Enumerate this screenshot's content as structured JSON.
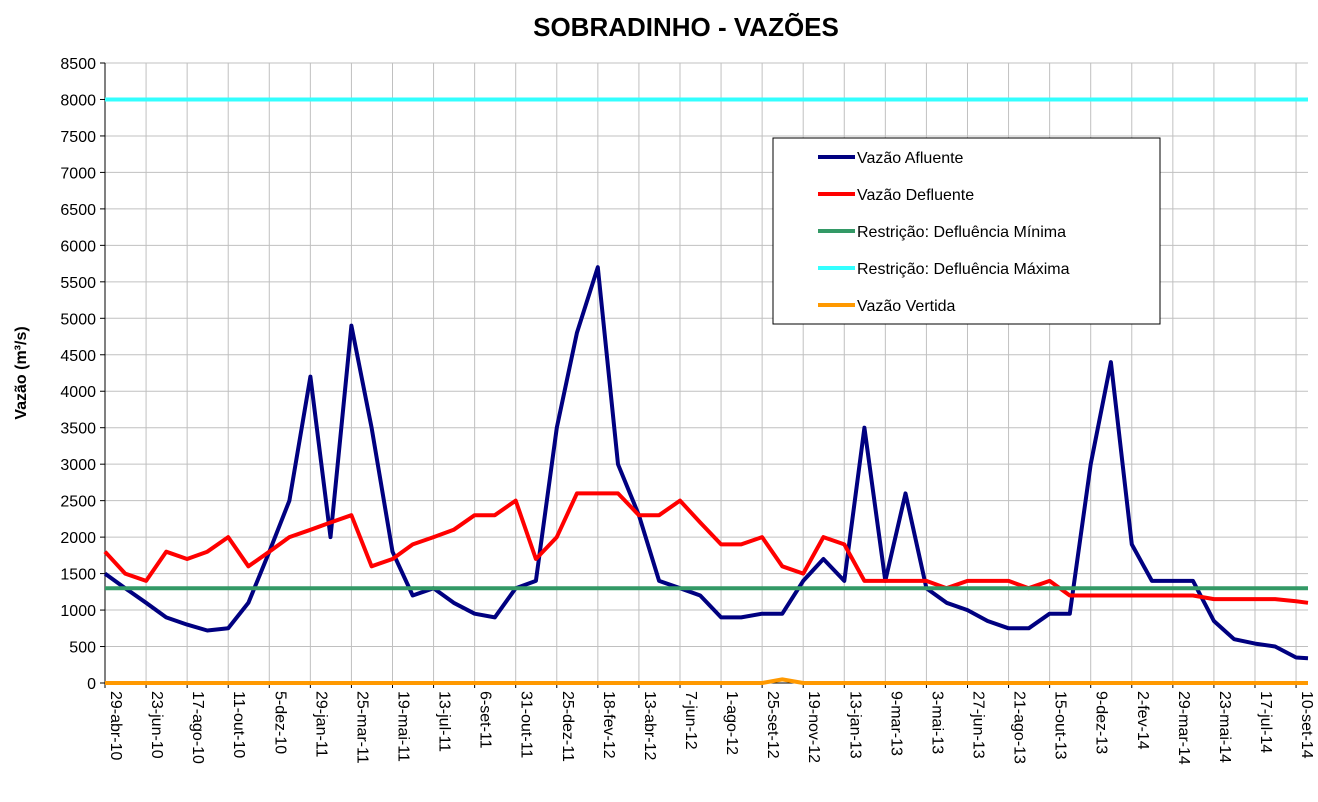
{
  "chart_data": {
    "type": "line",
    "title": "SOBRADINHO - VAZÕES",
    "y_label": "Vazão (m³/s)",
    "x": [
      "2010-04-29",
      "2010-05-26",
      "2010-06-23",
      "2010-07-20",
      "2010-08-17",
      "2010-09-13",
      "2010-10-11",
      "2010-11-07",
      "2010-12-05",
      "2011-01-01",
      "2011-01-29",
      "2011-02-25",
      "2011-03-25",
      "2011-04-21",
      "2011-05-19",
      "2011-06-15",
      "2011-07-13",
      "2011-08-09",
      "2011-09-06",
      "2011-10-03",
      "2011-10-31",
      "2011-11-27",
      "2011-12-25",
      "2012-01-21",
      "2012-02-18",
      "2012-03-16",
      "2012-04-13",
      "2012-05-10",
      "2012-06-07",
      "2012-07-04",
      "2012-08-01",
      "2012-08-28",
      "2012-09-25",
      "2012-10-22",
      "2012-11-19",
      "2012-12-16",
      "2013-01-13",
      "2013-02-09",
      "2013-03-09",
      "2013-04-05",
      "2013-05-03",
      "2013-05-30",
      "2013-06-27",
      "2013-07-24",
      "2013-08-21",
      "2013-09-17",
      "2013-10-15",
      "2013-11-11",
      "2013-12-09",
      "2014-01-05",
      "2014-02-02",
      "2014-03-01",
      "2014-03-29",
      "2014-04-25",
      "2014-05-23",
      "2014-06-19",
      "2014-07-17",
      "2014-08-13",
      "2014-09-10",
      "2014-09-26"
    ],
    "series": [
      {
        "name": "Vazão Afluente",
        "color": "#000080",
        "values": [
          1500,
          1300,
          1100,
          900,
          800,
          720,
          750,
          1100,
          1800,
          2500,
          4200,
          2000,
          4900,
          3500,
          1800,
          1200,
          1300,
          1100,
          950,
          900,
          1300,
          1400,
          3500,
          4800,
          5700,
          3000,
          2300,
          1400,
          1300,
          1200,
          900,
          900,
          950,
          950,
          1400,
          1700,
          1400,
          3500,
          1400,
          2600,
          1300,
          1100,
          1000,
          850,
          750,
          750,
          950,
          950,
          3000,
          4400,
          1900,
          1400,
          1400,
          1400,
          850,
          600,
          540,
          500,
          350,
          340
        ]
      },
      {
        "name": "Vazão Defluente",
        "color": "#ff0000",
        "values": [
          1800,
          1500,
          1400,
          1800,
          1700,
          1800,
          2000,
          1600,
          1800,
          2000,
          2100,
          2200,
          2300,
          1600,
          1700,
          1900,
          2000,
          2100,
          2300,
          2300,
          2500,
          1700,
          2000,
          2600,
          2600,
          2600,
          2300,
          2300,
          2500,
          2200,
          1900,
          1900,
          2000,
          1600,
          1500,
          2000,
          1900,
          1400,
          1400,
          1400,
          1400,
          1300,
          1400,
          1400,
          1400,
          1300,
          1400,
          1200,
          1200,
          1200,
          1200,
          1200,
          1200,
          1200,
          1150,
          1150,
          1150,
          1150,
          1120,
          1100
        ]
      },
      {
        "name": "Restrição: Defluência Mínima",
        "color": "#339966",
        "values": [
          1300,
          1300,
          1300,
          1300,
          1300,
          1300,
          1300,
          1300,
          1300,
          1300,
          1300,
          1300,
          1300,
          1300,
          1300,
          1300,
          1300,
          1300,
          1300,
          1300,
          1300,
          1300,
          1300,
          1300,
          1300,
          1300,
          1300,
          1300,
          1300,
          1300,
          1300,
          1300,
          1300,
          1300,
          1300,
          1300,
          1300,
          1300,
          1300,
          1300,
          1300,
          1300,
          1300,
          1300,
          1300,
          1300,
          1300,
          1300,
          1300,
          1300,
          1300,
          1300,
          1300,
          1300,
          1300,
          1300,
          1300,
          1300,
          1300,
          1300
        ]
      },
      {
        "name": "Restrição: Defluência Máxima",
        "color": "#33ffff",
        "values": [
          8000,
          8000,
          8000,
          8000,
          8000,
          8000,
          8000,
          8000,
          8000,
          8000,
          8000,
          8000,
          8000,
          8000,
          8000,
          8000,
          8000,
          8000,
          8000,
          8000,
          8000,
          8000,
          8000,
          8000,
          8000,
          8000,
          8000,
          8000,
          8000,
          8000,
          8000,
          8000,
          8000,
          8000,
          8000,
          8000,
          8000,
          8000,
          8000,
          8000,
          8000,
          8000,
          8000,
          8000,
          8000,
          8000,
          8000,
          8000,
          8000,
          8000,
          8000,
          8000,
          8000,
          8000,
          8000,
          8000,
          8000,
          8000,
          8000,
          8000
        ]
      },
      {
        "name": "Vazão Vertida",
        "color": "#ff9900",
        "values": [
          0,
          0,
          0,
          0,
          0,
          0,
          0,
          0,
          0,
          0,
          0,
          0,
          0,
          0,
          0,
          0,
          0,
          0,
          0,
          0,
          0,
          0,
          0,
          0,
          0,
          0,
          0,
          0,
          0,
          0,
          0,
          0,
          0,
          50,
          0,
          0,
          0,
          0,
          0,
          0,
          0,
          0,
          0,
          0,
          0,
          0,
          0,
          0,
          0,
          0,
          0,
          0,
          0,
          0,
          0,
          0,
          0,
          0,
          0,
          0
        ]
      }
    ],
    "xlim": [
      "2010-04-29",
      "2014-09-26"
    ],
    "xticks": [
      {
        "value": "2010-04-29",
        "label": "29-abr-10"
      },
      {
        "value": "2010-06-23",
        "label": "23-jun-10"
      },
      {
        "value": "2010-08-17",
        "label": "17-ago-10"
      },
      {
        "value": "2010-10-11",
        "label": "11-out-10"
      },
      {
        "value": "2010-12-05",
        "label": "5-dez-10"
      },
      {
        "value": "2011-01-29",
        "label": "29-jan-11"
      },
      {
        "value": "2011-03-25",
        "label": "25-mar-11"
      },
      {
        "value": "2011-05-19",
        "label": "19-mai-11"
      },
      {
        "value": "2011-07-13",
        "label": "13-jul-11"
      },
      {
        "value": "2011-09-06",
        "label": "6-set-11"
      },
      {
        "value": "2011-10-31",
        "label": "31-out-11"
      },
      {
        "value": "2011-12-25",
        "label": "25-dez-11"
      },
      {
        "value": "2012-02-18",
        "label": "18-fev-12"
      },
      {
        "value": "2012-04-13",
        "label": "13-abr-12"
      },
      {
        "value": "2012-06-07",
        "label": "7-jun-12"
      },
      {
        "value": "2012-08-01",
        "label": "1-ago-12"
      },
      {
        "value": "2012-09-25",
        "label": "25-set-12"
      },
      {
        "value": "2012-11-19",
        "label": "19-nov-12"
      },
      {
        "value": "2013-01-13",
        "label": "13-jan-13"
      },
      {
        "value": "2013-03-09",
        "label": "9-mar-13"
      },
      {
        "value": "2013-05-03",
        "label": "3-mai-13"
      },
      {
        "value": "2013-06-27",
        "label": "27-jun-13"
      },
      {
        "value": "2013-08-21",
        "label": "21-ago-13"
      },
      {
        "value": "2013-10-15",
        "label": "15-out-13"
      },
      {
        "value": "2013-12-09",
        "label": "9-dez-13"
      },
      {
        "value": "2014-02-02",
        "label": "2-fev-14"
      },
      {
        "value": "2014-03-29",
        "label": "29-mar-14"
      },
      {
        "value": "2014-05-23",
        "label": "23-mai-14"
      },
      {
        "value": "2014-07-17",
        "label": "17-jul-14"
      },
      {
        "value": "2014-09-10",
        "label": "10-set-14"
      }
    ],
    "ylim": [
      0,
      8500
    ],
    "yticks": [
      0,
      500,
      1000,
      1500,
      2000,
      2500,
      3000,
      3500,
      4000,
      4500,
      5000,
      5500,
      6000,
      6500,
      7000,
      7500,
      8000,
      8500
    ],
    "grid": true,
    "legend": "upper right"
  }
}
